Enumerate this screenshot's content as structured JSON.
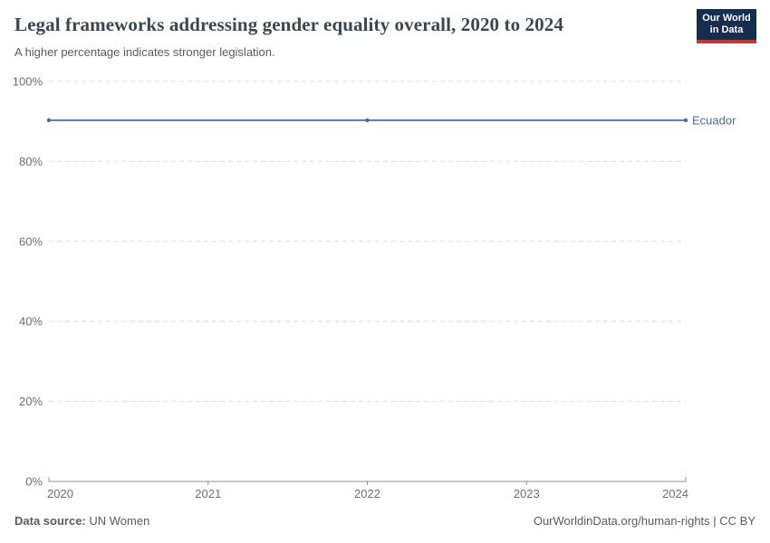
{
  "header": {
    "title": "Legal frameworks addressing gender equality overall, 2020 to 2024",
    "subtitle": "A higher percentage indicates stronger legislation.",
    "logo": {
      "line1": "Our World",
      "line2": "in Data",
      "bg_color": "#162d50",
      "accent_color": "#bf3936"
    }
  },
  "chart_data": {
    "type": "line",
    "title": "Legal frameworks addressing gender equality overall, 2020 to 2024",
    "subtitle": "A higher percentage indicates stronger legislation.",
    "xlabel": "",
    "ylabel": "",
    "xlim": [
      2020,
      2024
    ],
    "ylim": [
      0,
      100
    ],
    "x_ticks": [
      2020,
      2021,
      2022,
      2023,
      2024
    ],
    "y_ticks": [
      0,
      20,
      40,
      60,
      80,
      100
    ],
    "y_tick_suffix": "%",
    "grid": "horizontal-dashed",
    "grid_color": "#dcdcdc",
    "axis_color": "#8f8f8f",
    "label_color": "#6e6e6e",
    "legend_position": "right-of-line-end",
    "series": [
      {
        "name": "Ecuador",
        "color": "#4c6a9c",
        "x": [
          2020,
          2022,
          2024
        ],
        "values": [
          90.3,
          90.3,
          90.3
        ]
      }
    ]
  },
  "footer": {
    "source_label": "Data source:",
    "source_value": "UN Women",
    "rights": "OurWorldinData.org/human-rights | CC BY"
  }
}
